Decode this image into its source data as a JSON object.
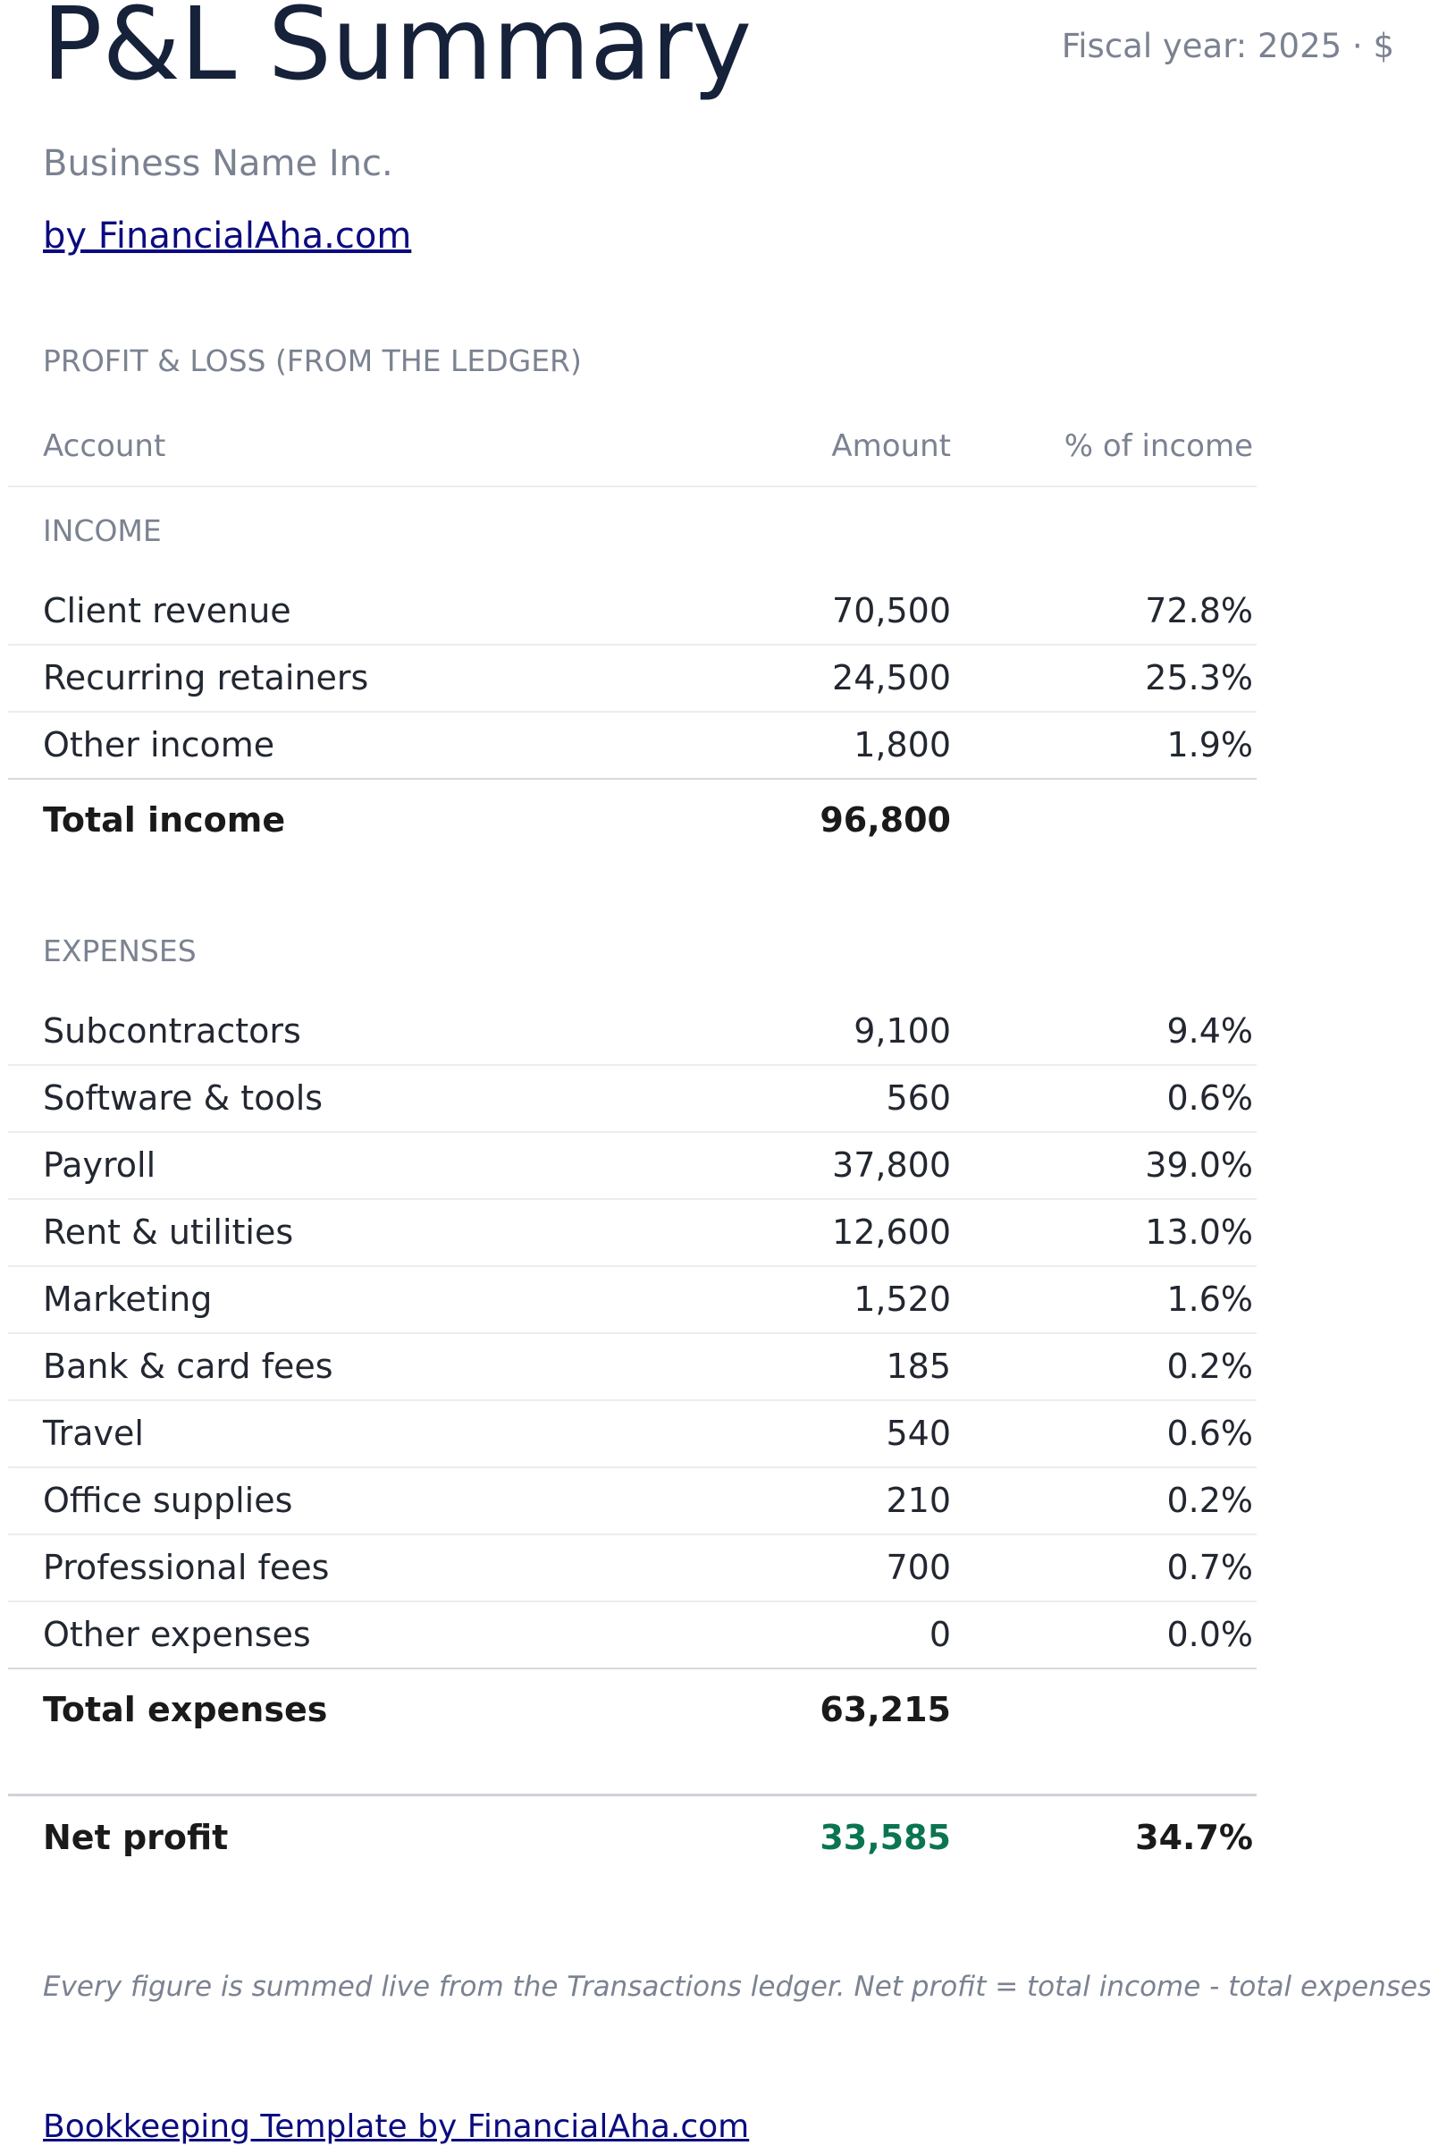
{
  "header": {
    "title": "P&L Summary",
    "fiscal": "Fiscal year: 2025 · $",
    "business": "Business Name Inc.",
    "link": "by FinancialAha.com"
  },
  "section_label": "PROFIT & LOSS (FROM THE LEDGER)",
  "columns": [
    "Account",
    "Amount",
    "% of income"
  ],
  "income": {
    "label": "INCOME",
    "rows": [
      [
        "Client revenue",
        "70,500",
        "72.8%"
      ],
      [
        "Recurring retainers",
        "24,500",
        "25.3%"
      ],
      [
        "Other income",
        "1,800",
        "1.9%"
      ]
    ],
    "total": {
      "label": "Total income",
      "amount": "96,800"
    }
  },
  "expenses": {
    "label": "EXPENSES",
    "rows": [
      [
        "Subcontractors",
        "9,100",
        "9.4%"
      ],
      [
        "Software & tools",
        "560",
        "0.6%"
      ],
      [
        "Payroll",
        "37,800",
        "39.0%"
      ],
      [
        "Rent & utilities",
        "12,600",
        "13.0%"
      ],
      [
        "Marketing",
        "1,520",
        "1.6%"
      ],
      [
        "Bank & card fees",
        "185",
        "0.2%"
      ],
      [
        "Travel",
        "540",
        "0.6%"
      ],
      [
        "Office supplies",
        "210",
        "0.2%"
      ],
      [
        "Professional fees",
        "700",
        "0.7%"
      ],
      [
        "Other expenses",
        "0",
        "0.0%"
      ]
    ],
    "total": {
      "label": "Total expenses",
      "amount": "63,215"
    }
  },
  "net_profit": {
    "label": "Net profit",
    "amount": "33,585",
    "pct": "34.7%"
  },
  "footnote": "Every figure is summed live from the Transactions ledger. Net profit = total income - total expenses.",
  "footer_link": "Bookkeeping Template by FinancialAha.com"
}
